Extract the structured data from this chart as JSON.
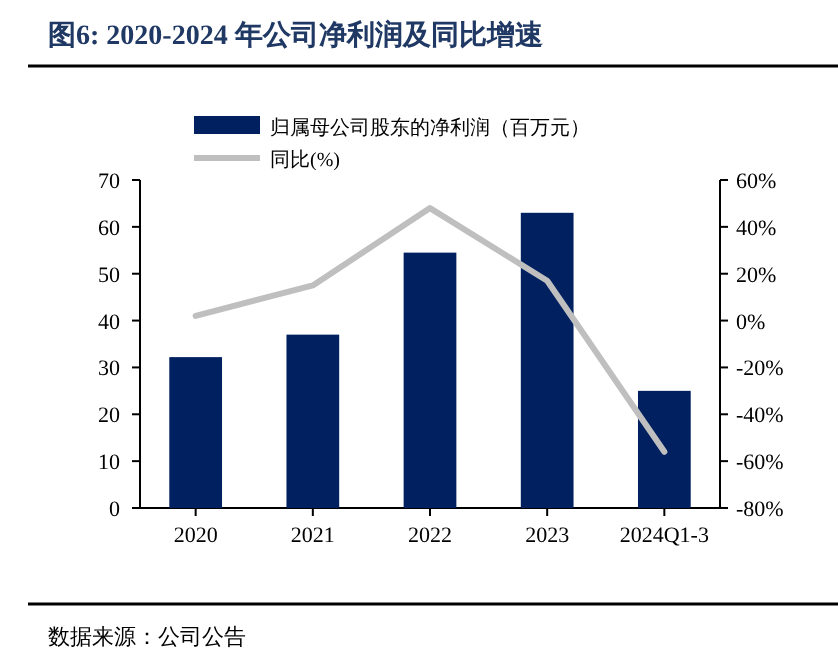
{
  "chart_data": {
    "type": "bar",
    "title": "图6:  2020-2024 年公司净利润及同比增速",
    "categories": [
      "2020",
      "2021",
      "2022",
      "2023",
      "2024Q1-3"
    ],
    "series": [
      {
        "name": "归属母公司股东的净利润（百万元）",
        "color": "#002060",
        "values": [
          32.2,
          37,
          54.5,
          63,
          25
        ]
      },
      {
        "name": "同比(%)",
        "type": "line",
        "axis": "y2",
        "color": "#bfbfbf",
        "values": [
          2,
          15,
          48,
          17,
          -56
        ]
      }
    ],
    "ylim": [
      0,
      70
    ],
    "yticks": [
      0,
      10,
      20,
      30,
      40,
      50,
      60,
      70
    ],
    "y2lim": [
      -80,
      60
    ],
    "y2ticks": [
      {
        "value": -80,
        "label": "-80%"
      },
      {
        "value": -60,
        "label": "-60%"
      },
      {
        "value": -40,
        "label": "-40%"
      },
      {
        "value": -20,
        "label": "-20%"
      },
      {
        "value": 0,
        "label": "0%"
      },
      {
        "value": 20,
        "label": "20%"
      },
      {
        "value": 40,
        "label": "40%"
      },
      {
        "value": 60,
        "label": "60%"
      }
    ],
    "legend": "top",
    "annotations": [
      "数据来源：公司公告"
    ]
  }
}
